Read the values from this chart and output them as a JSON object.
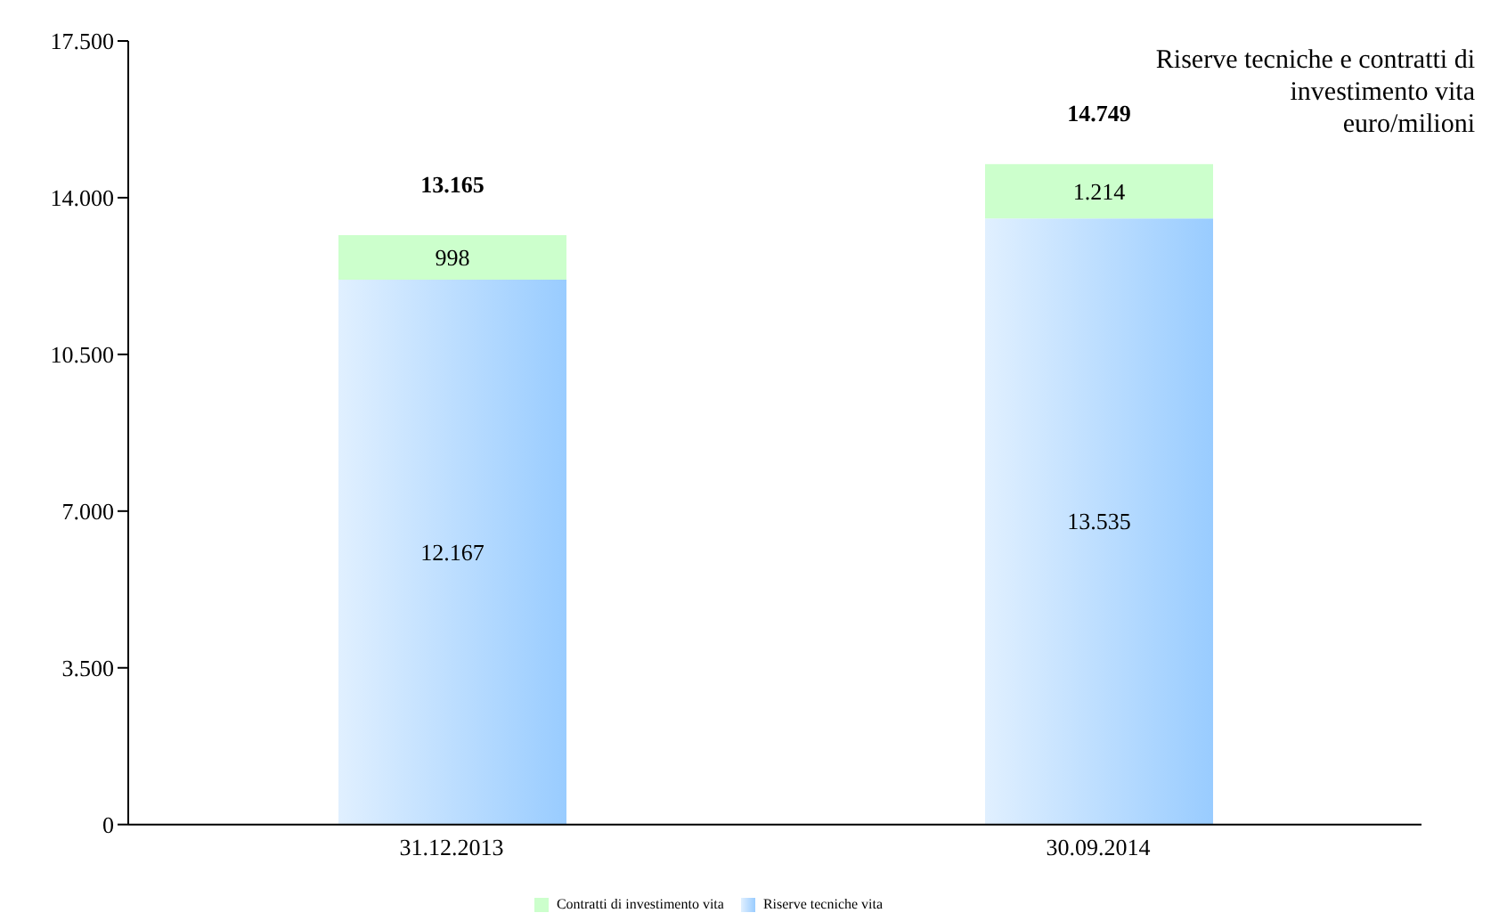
{
  "chart_data": {
    "type": "bar",
    "title": "Riserve tecniche e contratti di investimento vita",
    "subtitle": "euro/milioni",
    "categories": [
      "31.12.2013",
      "30.09.2014"
    ],
    "stacked": true,
    "series": [
      {
        "name": "Riserve tecniche vita",
        "color": "#99ccff",
        "values": [
          12167,
          13535
        ],
        "value_labels": [
          "12.167",
          "13.535"
        ]
      },
      {
        "name": "Contratti di investimento vita",
        "color": "#ccffcc",
        "values": [
          998,
          1214
        ],
        "value_labels": [
          "998",
          "1.214"
        ]
      }
    ],
    "totals": [
      "13.165",
      "14.749"
    ],
    "ylim": [
      0,
      17500
    ],
    "yticks": [
      {
        "value": 0,
        "label": "0"
      },
      {
        "value": 3500,
        "label": "3.500"
      },
      {
        "value": 7000,
        "label": "7.000"
      },
      {
        "value": 10500,
        "label": "10.500"
      },
      {
        "value": 14000,
        "label": "14.000"
      },
      {
        "value": 17500,
        "label": "17.500"
      }
    ],
    "grid": false,
    "legend": "bottom"
  }
}
